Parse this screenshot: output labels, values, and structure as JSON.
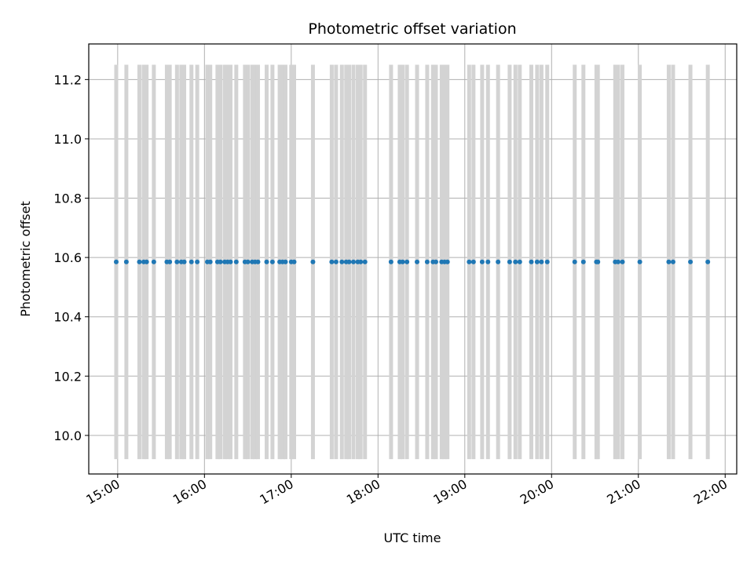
{
  "chart_data": {
    "type": "scatter",
    "title": "Photometric offset variation",
    "xlabel": "UTC time",
    "ylabel": "Photometric offset",
    "x_ticks": [
      "15:00",
      "16:00",
      "17:00",
      "18:00",
      "19:00",
      "20:00",
      "21:00",
      "22:00"
    ],
    "y_ticks": [
      "10.0",
      "10.2",
      "10.4",
      "10.6",
      "10.8",
      "11.0",
      "11.2"
    ],
    "xlim": [
      "14:40",
      "22:08"
    ],
    "ylim": [
      9.87,
      11.32
    ],
    "grid": true,
    "errorbar_color": "#d3d3d3",
    "point_color": "#1f77b4",
    "errorbar_range": [
      9.92,
      11.25
    ],
    "series": [
      {
        "x": [
          "14:59",
          "15:06",
          "15:15",
          "15:18",
          "15:20",
          "15:25",
          "15:34",
          "15:36",
          "15:41",
          "15:44",
          "15:46",
          "15:51",
          "15:55",
          "16:02",
          "16:04",
          "16:09",
          "16:11",
          "16:14",
          "16:16",
          "16:18",
          "16:22",
          "16:28",
          "16:30",
          "16:33",
          "16:35",
          "16:37",
          "16:43",
          "16:47",
          "16:52",
          "16:54",
          "16:56",
          "17:00",
          "17:02",
          "17:15",
          "17:28",
          "17:31",
          "17:35",
          "17:38",
          "17:40",
          "17:43",
          "17:46",
          "17:48",
          "17:51",
          "18:09",
          "18:15",
          "18:17",
          "18:20",
          "18:27",
          "18:34",
          "18:38",
          "18:40",
          "18:44",
          "18:46",
          "18:48",
          "19:03",
          "19:06",
          "19:12",
          "19:16",
          "19:23",
          "19:31",
          "19:35",
          "19:38",
          "19:46",
          "19:50",
          "19:53",
          "19:57",
          "20:16",
          "20:22",
          "20:31",
          "20:32",
          "20:44",
          "20:46",
          "20:49",
          "21:01",
          "21:21",
          "21:24",
          "21:36",
          "21:48"
        ],
        "y": [
          10.585,
          10.585,
          10.585,
          10.585,
          10.585,
          10.585,
          10.585,
          10.585,
          10.585,
          10.585,
          10.585,
          10.585,
          10.585,
          10.585,
          10.585,
          10.585,
          10.585,
          10.585,
          10.585,
          10.585,
          10.585,
          10.585,
          10.585,
          10.585,
          10.585,
          10.585,
          10.585,
          10.585,
          10.585,
          10.585,
          10.585,
          10.585,
          10.585,
          10.585,
          10.585,
          10.585,
          10.585,
          10.585,
          10.585,
          10.585,
          10.585,
          10.585,
          10.585,
          10.585,
          10.585,
          10.585,
          10.585,
          10.585,
          10.585,
          10.585,
          10.585,
          10.585,
          10.585,
          10.585,
          10.585,
          10.585,
          10.585,
          10.585,
          10.585,
          10.585,
          10.585,
          10.585,
          10.585,
          10.585,
          10.585,
          10.585,
          10.585,
          10.585,
          10.585,
          10.585,
          10.585,
          10.585,
          10.585,
          10.585,
          10.585,
          10.585,
          10.585,
          10.585
        ]
      }
    ]
  }
}
